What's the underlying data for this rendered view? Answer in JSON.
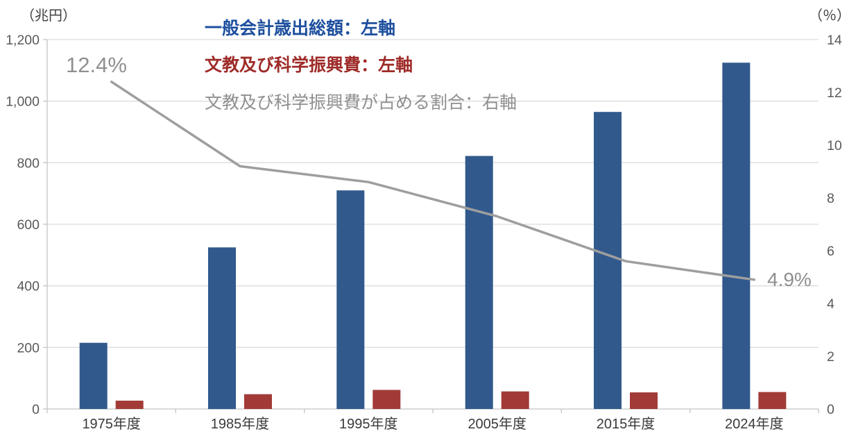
{
  "chart_data": {
    "type": "combo",
    "title": "",
    "categories": [
      "1975年度",
      "1985年度",
      "1995年度",
      "2005年度",
      "2015年度",
      "2024年度"
    ],
    "series": [
      {
        "name": "一般会計歳出総額：左軸",
        "type": "bar",
        "axis": "left",
        "color": "#31598c",
        "values": [
          215,
          525,
          710,
          822,
          965,
          1125
        ]
      },
      {
        "name": "文教及び科学振興費：左軸",
        "type": "bar",
        "axis": "left",
        "color": "#a23b38",
        "values": [
          27,
          48,
          62,
          57,
          54,
          55
        ]
      },
      {
        "name": "文教及び科学振興費が占める割合：右軸",
        "type": "line",
        "axis": "right",
        "color": "#9e9e9e",
        "values": [
          12.4,
          9.2,
          8.6,
          7.3,
          5.6,
          4.9
        ]
      }
    ],
    "left_axis": {
      "label": "（兆円）",
      "min": 0,
      "max": 1200,
      "step": 200,
      "tick_labels": [
        "0",
        "200",
        "400",
        "600",
        "800",
        "1,000",
        "1,200"
      ]
    },
    "right_axis": {
      "label": "（％）",
      "min": 0,
      "max": 14,
      "step": 2,
      "tick_labels": [
        "0",
        "2",
        "4",
        "6",
        "8",
        "10",
        "12",
        "14"
      ]
    },
    "legend": {
      "position": "top-left-inside",
      "items": [
        {
          "label": "一般会計歳出総額：左軸",
          "color": "#1d4f9e"
        },
        {
          "label": "文教及び科学振興費：左軸",
          "color": "#9e2b28"
        },
        {
          "label": "文教及び科学振興費が占める割合：右軸",
          "color": "#8f8f8f"
        }
      ]
    },
    "annotations": [
      {
        "text": "12.4%",
        "color": "#8f8f8f",
        "at": "first-line-point"
      },
      {
        "text": "4.9%",
        "color": "#8f8f8f",
        "at": "last-line-point"
      }
    ],
    "grid": true
  }
}
